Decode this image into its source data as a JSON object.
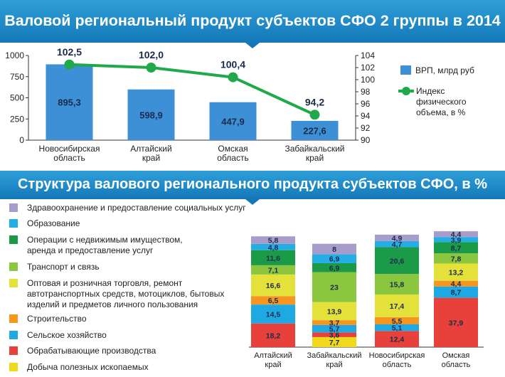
{
  "titles": {
    "top": "Валовой региональный продукт субъектов СФО 2 группы в 2014 году",
    "bottom": "Структура валового регионального продукта субъектов СФО, в %"
  },
  "colors": {
    "banner": "#1e88c8",
    "bar": "#3d8fd6",
    "line": "#21a84a"
  },
  "chart_data": [
    {
      "type": "bar",
      "categories": [
        "Новосибирская\nобласть",
        "Алтайский\nкрай",
        "Омская\nобласть",
        "Забайкальский\nкрай"
      ],
      "series": [
        {
          "name": "ВРП, млрд руб",
          "type": "bar",
          "axis": "left",
          "values": [
            895.3,
            598.9,
            447.9,
            227.6
          ],
          "labels": [
            "895,3",
            "598,9",
            "447,9",
            "227,6"
          ]
        },
        {
          "name": "Индекс физического объема, в %",
          "type": "line",
          "axis": "right",
          "values": [
            102.5,
            102.0,
            100.4,
            94.2
          ],
          "labels": [
            "102,5",
            "102,0",
            "100,4",
            "94,2"
          ]
        }
      ],
      "ylim_left": [
        0,
        1000
      ],
      "yticks_left": [
        "0",
        "250",
        "500",
        "750",
        "1000"
      ],
      "ylim_right": [
        90,
        104
      ],
      "yticks_right": [
        "90",
        "92",
        "94",
        "96",
        "98",
        "100",
        "102",
        "104"
      ],
      "legend": [
        {
          "label": "ВРП, млрд руб"
        },
        {
          "label": "Индекс\nфизического\nобъема, в %"
        }
      ]
    },
    {
      "type": "bar",
      "stacked": true,
      "categories": [
        "Алтайский\nкрай",
        "Забайкальский\nкрай",
        "Новосибирская\nобласть",
        "Омская\nобласть"
      ],
      "series": [
        {
          "name": "Добыча полезных ископаемых",
          "color": "#f0d81a",
          "values": [
            null,
            7.7,
            null,
            null
          ],
          "labels": [
            "",
            "7,7",
            "",
            ""
          ]
        },
        {
          "name": "Обрабатывающие производства",
          "color": "#e8413b",
          "values": [
            18.2,
            3.6,
            12.4,
            37.9
          ],
          "labels": [
            "18,2",
            "3,6",
            "12,4",
            "37,9"
          ]
        },
        {
          "name": "Сельское хозяйство",
          "color": "#1fa9e4",
          "values": [
            14.5,
            5.7,
            5.1,
            8.7
          ],
          "labels": [
            "14,5",
            "5,7",
            "5,1",
            "8,7"
          ]
        },
        {
          "name": "Строительство",
          "color": "#f7961f",
          "values": [
            6.5,
            3.7,
            5.5,
            4.4
          ],
          "labels": [
            "6,5",
            "3,7",
            "5,5",
            "4,4"
          ]
        },
        {
          "name": "Оптовая и розничная торговля, ремонт\nавтотранспортных средств, мотоциклов, бытовых\nизделий и предметов личного пользования",
          "color": "#e4e23a",
          "values": [
            16.6,
            13.9,
            17.4,
            13.2
          ],
          "labels": [
            "16,6",
            "13,9",
            "17,4",
            "13,2"
          ]
        },
        {
          "name": "Транспорт и связь",
          "color": "#8bc63f",
          "values": [
            7.1,
            23,
            15.8,
            7.8
          ],
          "labels": [
            "7,1",
            "23",
            "15,8",
            "7,8"
          ]
        },
        {
          "name": "Операции с недвижимым имуществом,\nаренда и предоставление услуг",
          "color": "#1b9a48",
          "values": [
            11.6,
            6.9,
            20.6,
            8.7
          ],
          "labels": [
            "11,6",
            "6,9",
            "20,6",
            "8,7"
          ]
        },
        {
          "name": "Образование",
          "color": "#24aee4",
          "values": [
            4.8,
            6.9,
            4.7,
            3.9
          ],
          "labels": [
            "4,8",
            "6,9",
            "4,7",
            "3,9"
          ]
        },
        {
          "name": "Здравоохранение и предоставление социальных услуг",
          "color": "#a89ccb",
          "values": [
            5.8,
            8,
            4.9,
            4.4
          ],
          "labels": [
            "5,8",
            "8",
            "4,9",
            "4,4"
          ]
        }
      ],
      "legend_order": [
        "Здравоохранение и предоставление социальных услуг",
        "Образование",
        "Операции с недвижимым имуществом,\nаренда и предоставление услуг",
        "Транспорт и связь",
        "Оптовая и розничная торговля, ремонт\nавтотранспортных средств, мотоциклов, бытовых\nизделий и предметов личного пользования",
        "Строительство",
        "Сельское хозяйство",
        "Обрабатывающие производства",
        "Добыча полезных ископаемых"
      ]
    }
  ]
}
